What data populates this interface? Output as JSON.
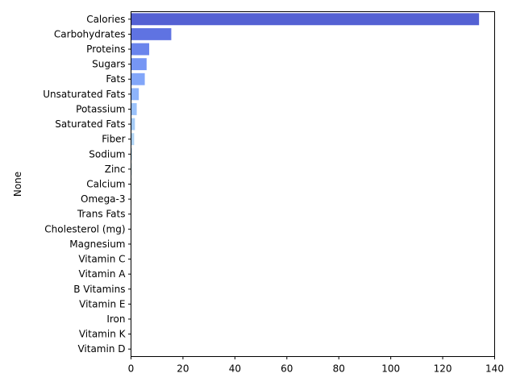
{
  "chart_data": {
    "type": "bar",
    "orientation": "horizontal",
    "title": "",
    "xlabel": "",
    "ylabel": "None",
    "xlim": [
      0,
      140
    ],
    "xticks": [
      0,
      20,
      40,
      60,
      80,
      100,
      120,
      140
    ],
    "grid": false,
    "legend": "none",
    "categories": [
      "Calories",
      "Carbohydrates",
      "Proteins",
      "Sugars",
      "Fats",
      "Unsaturated Fats",
      "Potassium",
      "Saturated Fats",
      "Fiber",
      "Sodium",
      "Zinc",
      "Calcium",
      "Omega-3",
      "Trans Fats",
      "Cholesterol (mg)",
      "Magnesium",
      "Vitamin C",
      "Vitamin A",
      "B Vitamins",
      "Vitamin E",
      "Iron",
      "Vitamin K",
      "Vitamin D"
    ],
    "values": [
      134,
      15.5,
      7,
      6,
      5.3,
      3,
      2.2,
      1.5,
      1.2,
      0.4,
      0.3,
      0.25,
      0.2,
      0.15,
      0.12,
      0.1,
      0.08,
      0.06,
      0.05,
      0.04,
      0.03,
      0.02,
      0.01
    ],
    "colors": [
      "#5461d3",
      "#5f73e2",
      "#6a84ec",
      "#7696f4",
      "#82a6f9",
      "#8eb4fb",
      "#9ac1fb",
      "#a5cbf8",
      "#afd3f4",
      "#b9d9ee",
      "#c4dde6",
      "#cddfdc",
      "#d6ddd1",
      "#dedac4",
      "#e4d5b6",
      "#e9cea8",
      "#ecc69a",
      "#edbd8c",
      "#edb27e",
      "#eba770",
      "#e79a62",
      "#e28d55",
      "#dd8048"
    ]
  }
}
